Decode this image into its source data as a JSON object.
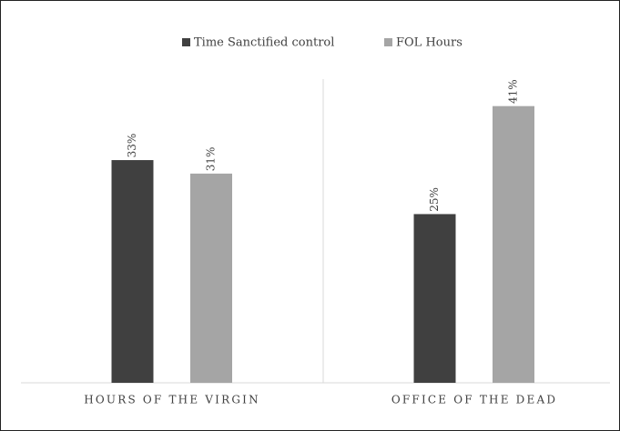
{
  "chart_data": {
    "type": "bar",
    "categories": [
      "HOURS OF THE VIRGIN",
      "OFFICE OF THE DEAD"
    ],
    "series": [
      {
        "name": "Time Sanctified control",
        "color": "#404040",
        "values": [
          33,
          25
        ],
        "value_labels": [
          "33%",
          "25%"
        ]
      },
      {
        "name": "FOL Hours",
        "color": "#a5a5a5",
        "values": [
          31,
          41
        ],
        "value_labels": [
          "31%",
          "41%"
        ]
      }
    ],
    "ylim": [
      0,
      45
    ],
    "legend": "top"
  }
}
